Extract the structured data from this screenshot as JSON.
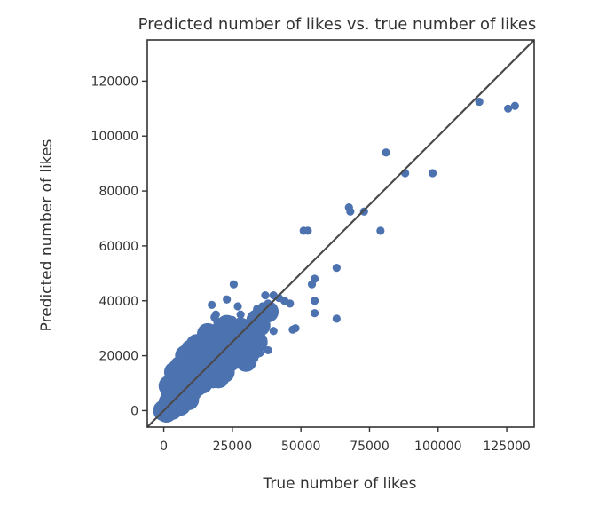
{
  "chart_data": {
    "type": "scatter",
    "title": "Predicted number of likes vs. true number of likes",
    "xlabel": "True number of likes",
    "ylabel": "Predicted number of likes",
    "xlim": [
      -6000,
      135000
    ],
    "ylim": [
      -6000,
      135000
    ],
    "xticks": [
      0,
      25000,
      50000,
      75000,
      100000,
      125000
    ],
    "yticks": [
      0,
      20000,
      40000,
      60000,
      80000,
      100000,
      120000
    ],
    "grid": false,
    "legend": "none",
    "reference_line": "y = x",
    "colors": {
      "points": "#4c72b0",
      "line": "#4a4a4a",
      "axis": "#333333"
    },
    "series": [
      {
        "points": [
          [
            115000,
            112500
          ],
          [
            125500,
            110000
          ],
          [
            128000,
            111000
          ],
          [
            88000,
            86500
          ],
          [
            98000,
            86500
          ],
          [
            81000,
            94000
          ],
          [
            67500,
            74000
          ],
          [
            68000,
            72500
          ],
          [
            73000,
            72500
          ],
          [
            79000,
            65500
          ],
          [
            51000,
            65500
          ],
          [
            52500,
            65500
          ],
          [
            63000,
            52000
          ],
          [
            55000,
            48000
          ],
          [
            54000,
            46000
          ],
          [
            55000,
            40000
          ],
          [
            55000,
            35500
          ],
          [
            63000,
            33500
          ],
          [
            48000,
            30000
          ],
          [
            47000,
            29500
          ],
          [
            40000,
            29000
          ],
          [
            38000,
            22000
          ],
          [
            35000,
            21000
          ],
          [
            33000,
            19000
          ],
          [
            31000,
            16000
          ],
          [
            30000,
            21000
          ],
          [
            37000,
            42000
          ],
          [
            40000,
            42000
          ],
          [
            42000,
            41000
          ],
          [
            44000,
            40000
          ],
          [
            46000,
            39000
          ],
          [
            38000,
            39000
          ],
          [
            36000,
            38000
          ],
          [
            34000,
            37000
          ],
          [
            25500,
            46000
          ],
          [
            23000,
            40500
          ],
          [
            17500,
            38500
          ],
          [
            18500,
            34000
          ],
          [
            19000,
            35000
          ],
          [
            27000,
            38000
          ],
          [
            28000,
            35000
          ],
          [
            25000,
            33000
          ],
          [
            21000,
            31000
          ],
          [
            19500,
            32500
          ],
          [
            29000,
            31000
          ]
        ]
      }
    ]
  }
}
